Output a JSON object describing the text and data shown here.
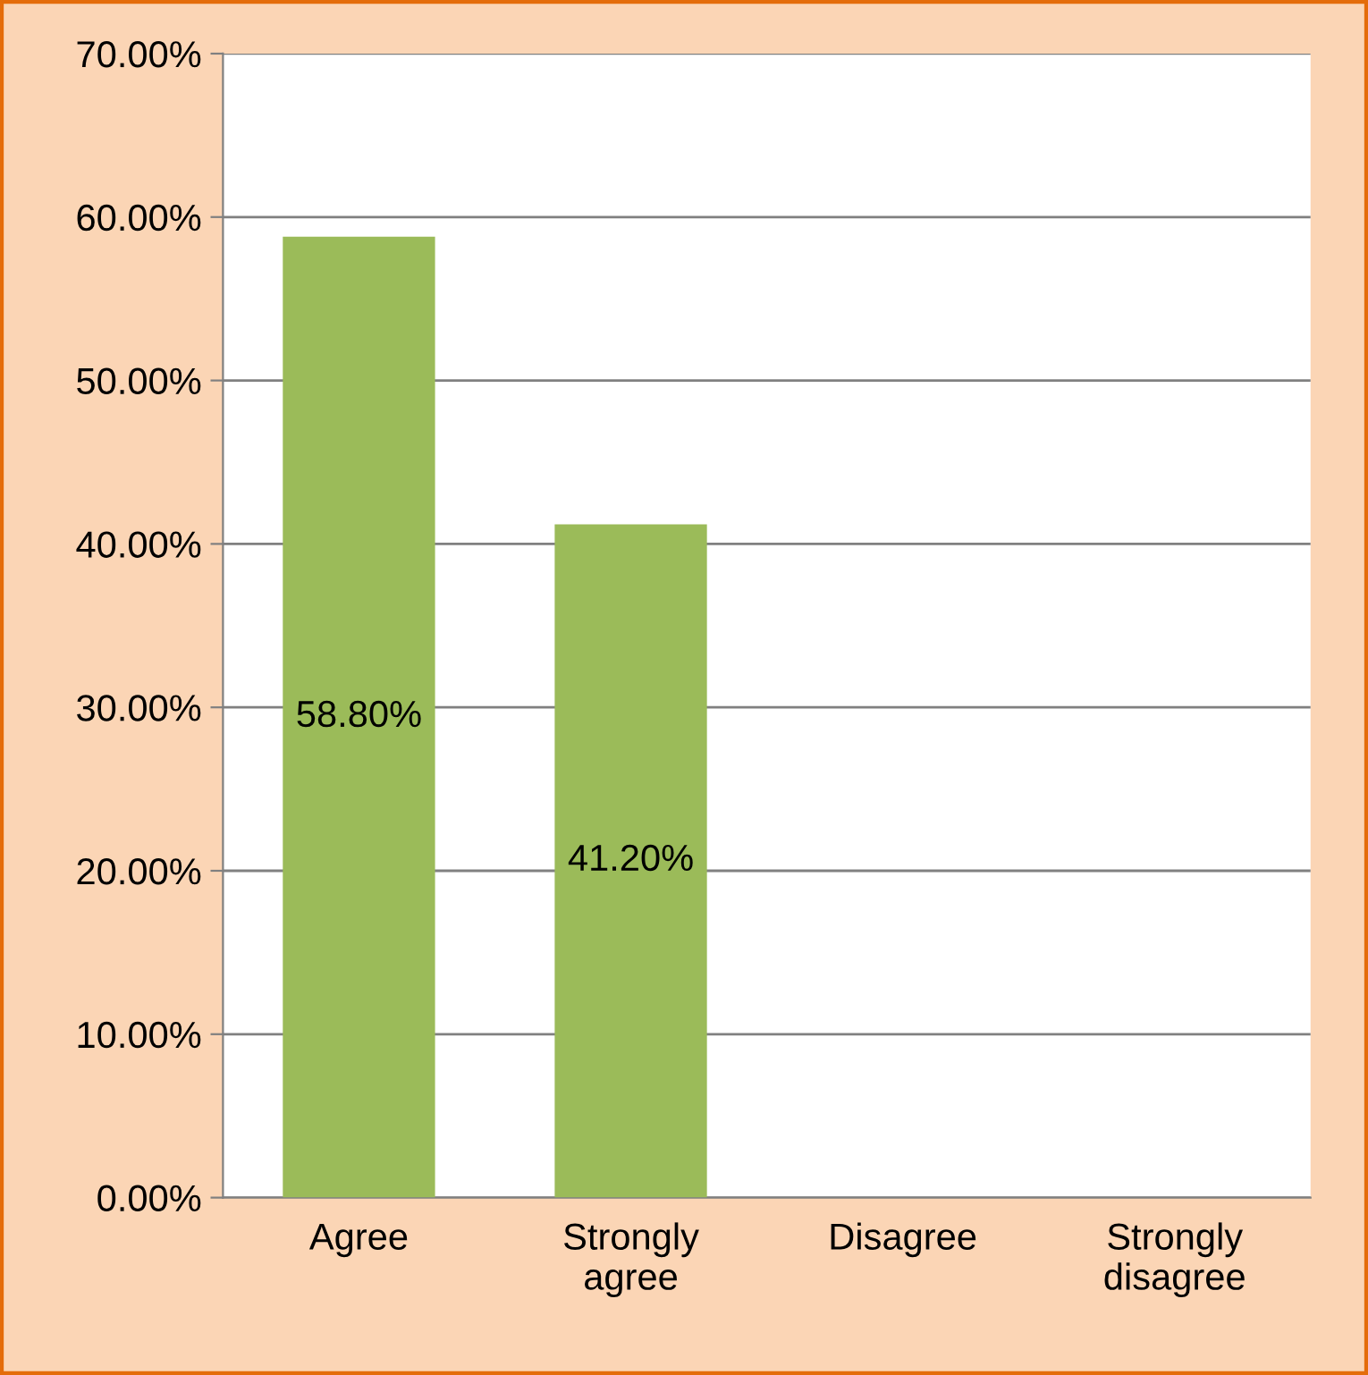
{
  "chart_data": {
    "type": "bar",
    "categories": [
      "Agree",
      "Strongly\nagree",
      "Disagree",
      "Strongly\ndisagree"
    ],
    "values": [
      58.8,
      41.2,
      0,
      0
    ],
    "value_labels": [
      "58.80%",
      "41.20%",
      null,
      null
    ],
    "color": "#9bbb59",
    "ylim": [
      0,
      70
    ],
    "yticks": [
      {
        "value": 0,
        "label": "0.00%"
      },
      {
        "value": 10,
        "label": "10.00%"
      },
      {
        "value": 20,
        "label": "20.00%"
      },
      {
        "value": 30,
        "label": "30.00%"
      },
      {
        "value": 40,
        "label": "40.00%"
      },
      {
        "value": 50,
        "label": "50.00%"
      },
      {
        "value": 60,
        "label": "60.00%"
      },
      {
        "value": 70,
        "label": "70.00%"
      }
    ],
    "grid": "y",
    "legend": false
  }
}
